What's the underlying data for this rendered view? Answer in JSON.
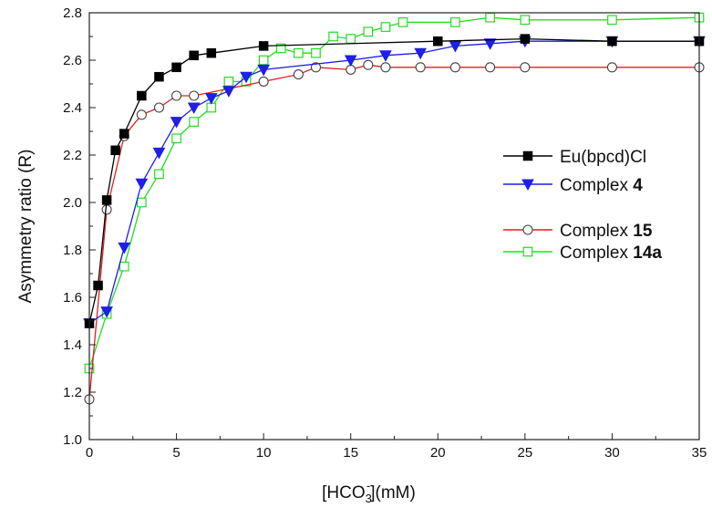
{
  "chart_data": {
    "type": "line",
    "title": "",
    "xlabel": {
      "main": "[HCO",
      "sub": "3",
      "sup": "-",
      "tail": "](mM)"
    },
    "ylabel": "Asymmetry ratio (R)",
    "xlim": [
      0,
      35
    ],
    "ylim": [
      1.0,
      2.8
    ],
    "x_ticks": [
      0,
      5,
      10,
      15,
      20,
      25,
      30,
      35
    ],
    "y_ticks": [
      1.0,
      1.2,
      1.4,
      1.6,
      1.8,
      2.0,
      2.2,
      2.4,
      2.6,
      2.8
    ],
    "x_tick_labels": [
      "0",
      "5",
      "10",
      "15",
      "20",
      "25",
      "30",
      "35"
    ],
    "y_tick_labels": [
      "1.0",
      "1.2",
      "1.4",
      "1.6",
      "1.8",
      "2.0",
      "2.2",
      "2.4",
      "2.6",
      "2.8"
    ],
    "grid": false,
    "legend_position": "right",
    "series": [
      {
        "name": "Eu(bpcd)Cl",
        "name_parts": [
          {
            "text": "Eu(bpcd)Cl",
            "bold": false
          }
        ],
        "color": "#000000",
        "marker": "filled-square",
        "x": [
          0,
          0.5,
          1,
          1.5,
          2,
          3,
          4,
          5,
          6,
          7,
          10,
          20,
          25,
          30,
          35
        ],
        "y": [
          1.49,
          1.65,
          2.01,
          2.22,
          2.29,
          2.45,
          2.53,
          2.57,
          2.62,
          2.63,
          2.66,
          2.68,
          2.69,
          2.68,
          2.68
        ]
      },
      {
        "name": "Complex 4",
        "name_parts": [
          {
            "text": "Complex ",
            "bold": false
          },
          {
            "text": "4",
            "bold": true
          }
        ],
        "color": "#1f1fe6",
        "marker": "filled-triangle-down",
        "x": [
          0,
          1,
          2,
          3,
          4,
          5,
          6,
          7,
          8,
          9,
          10,
          15,
          17,
          19,
          21,
          23,
          25,
          30,
          35
        ],
        "y": [
          1.49,
          1.54,
          1.81,
          2.08,
          2.21,
          2.34,
          2.4,
          2.44,
          2.47,
          2.53,
          2.56,
          2.6,
          2.62,
          2.63,
          2.66,
          2.67,
          2.68,
          2.68,
          2.68
        ]
      },
      {
        "name": "Complex 15",
        "name_parts": [
          {
            "text": "Complex ",
            "bold": false
          },
          {
            "text": "15",
            "bold": true
          }
        ],
        "color": "#e02020",
        "marker": "open-circle",
        "x": [
          0,
          1,
          2,
          3,
          4,
          5,
          6,
          10,
          12,
          13,
          15,
          16,
          17,
          19,
          21,
          23,
          25,
          30,
          35
        ],
        "y": [
          1.17,
          1.97,
          2.28,
          2.37,
          2.4,
          2.45,
          2.45,
          2.51,
          2.54,
          2.57,
          2.56,
          2.58,
          2.57,
          2.57,
          2.57,
          2.57,
          2.57,
          2.57,
          2.57
        ]
      },
      {
        "name": "Complex 14a",
        "name_parts": [
          {
            "text": "Complex ",
            "bold": false
          },
          {
            "text": "14a",
            "bold": true
          }
        ],
        "color": "#22dd22",
        "marker": "open-square",
        "x": [
          0,
          1,
          2,
          3,
          4,
          5,
          6,
          7,
          8,
          9,
          10,
          11,
          12,
          13,
          14,
          15,
          16,
          17,
          18,
          21,
          23,
          25,
          30,
          35
        ],
        "y": [
          1.3,
          1.53,
          1.73,
          2.0,
          2.12,
          2.27,
          2.34,
          2.4,
          2.51,
          2.51,
          2.6,
          2.65,
          2.63,
          2.63,
          2.7,
          2.69,
          2.72,
          2.74,
          2.76,
          2.76,
          2.78,
          2.77,
          2.77,
          2.78
        ]
      }
    ]
  }
}
